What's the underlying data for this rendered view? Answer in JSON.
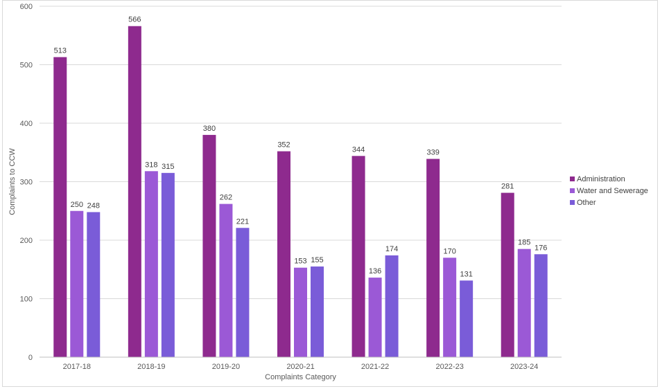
{
  "chart_data": {
    "type": "bar",
    "categories": [
      "2017-18",
      "2018-19",
      "2019-20",
      "2020-21",
      "2021-22",
      "2022-23",
      "2023-24"
    ],
    "series": [
      {
        "name": "Administration",
        "values": [
          513,
          566,
          380,
          352,
          344,
          339,
          281
        ],
        "color": "#8e2a8e"
      },
      {
        "name": "Water and Sewerage",
        "values": [
          250,
          318,
          262,
          153,
          136,
          170,
          185
        ],
        "color": "#9b59d6"
      },
      {
        "name": "Other",
        "values": [
          248,
          315,
          221,
          155,
          174,
          131,
          176
        ],
        "color": "#7a5cd8"
      }
    ],
    "xlabel": "Complaints Category",
    "ylabel": "Complaints to CCW",
    "ylim": [
      0,
      600
    ],
    "yticks": [
      0,
      100,
      200,
      300,
      400,
      500,
      600
    ],
    "grid": true,
    "legend_position": "right",
    "gridline_color": "#d9d9d9"
  }
}
